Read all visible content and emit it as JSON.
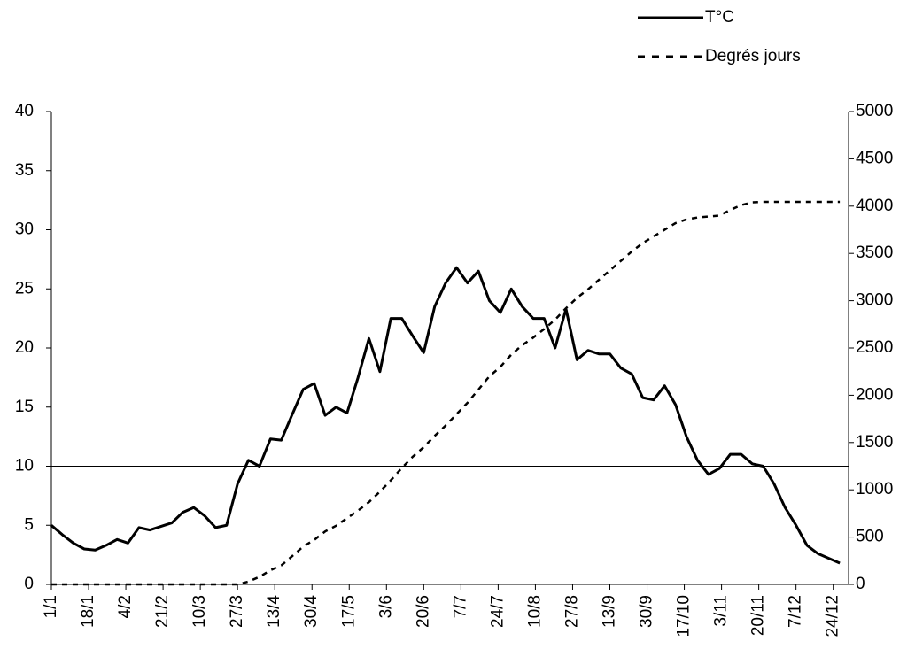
{
  "chart_data": {
    "type": "line",
    "x": [
      1,
      6,
      11,
      16,
      21,
      26,
      31,
      36,
      41,
      46,
      51,
      56,
      61,
      66,
      71,
      76,
      81,
      86,
      91,
      96,
      101,
      106,
      111,
      116,
      121,
      126,
      131,
      136,
      141,
      146,
      151,
      156,
      161,
      166,
      171,
      176,
      181,
      186,
      191,
      196,
      201,
      206,
      211,
      216,
      221,
      226,
      231,
      236,
      241,
      246,
      251,
      256,
      261,
      266,
      271,
      276,
      281,
      286,
      291,
      296,
      301,
      306,
      311,
      316,
      321,
      326,
      331,
      336,
      341,
      346,
      351,
      356,
      361
    ],
    "series": [
      {
        "name": "T°C",
        "color": "#000000",
        "dash": false,
        "values": [
          5.0,
          4.2,
          3.5,
          3.0,
          2.9,
          3.3,
          3.8,
          3.5,
          4.8,
          4.6,
          4.9,
          5.2,
          6.1,
          6.5,
          5.8,
          4.8,
          5.0,
          8.5,
          10.5,
          10.0,
          12.3,
          12.2,
          14.4,
          16.5,
          17.0,
          14.3,
          15.0,
          14.5,
          17.5,
          20.8,
          18.0,
          22.5,
          22.5,
          21.0,
          19.6,
          23.5,
          25.5,
          26.8,
          25.5,
          26.5,
          24.0,
          23.0,
          25.0,
          23.5,
          22.5,
          22.5,
          20.0,
          23.3,
          19.0,
          19.8,
          19.5,
          19.5,
          18.3,
          17.8,
          15.8,
          15.6,
          16.8,
          15.2,
          12.5,
          10.5,
          9.3,
          9.8,
          11.0,
          11.0,
          10.2,
          10.0,
          8.5,
          6.5,
          5.0,
          3.3,
          2.6,
          2.2,
          1.8
        ]
      },
      {
        "name": "Degrés jours",
        "color": "#000000",
        "dash": true,
        "axis": "y2",
        "values": [
          0,
          0,
          0,
          0,
          0,
          0,
          0,
          0,
          0,
          0,
          0,
          0,
          0,
          0,
          0,
          0,
          0,
          0,
          30,
          80,
          150,
          200,
          300,
          400,
          470,
          560,
          620,
          700,
          780,
          870,
          980,
          1100,
          1230,
          1350,
          1450,
          1570,
          1680,
          1800,
          1920,
          2060,
          2200,
          2300,
          2430,
          2530,
          2610,
          2700,
          2800,
          2920,
          3030,
          3120,
          3220,
          3320,
          3420,
          3520,
          3610,
          3680,
          3750,
          3820,
          3860,
          3880,
          3890,
          3900,
          3960,
          4010,
          4040,
          4045,
          4045,
          4045,
          4045,
          4045,
          4045,
          4045,
          4045
        ]
      }
    ],
    "xlim": [
      1,
      365
    ],
    "xticks": [
      {
        "value": 1,
        "label": "1/1"
      },
      {
        "value": 18,
        "label": "18/1"
      },
      {
        "value": 35,
        "label": "4/2"
      },
      {
        "value": 52,
        "label": "21/2"
      },
      {
        "value": 69,
        "label": "10/3"
      },
      {
        "value": 86,
        "label": "27/3"
      },
      {
        "value": 103,
        "label": "13/4"
      },
      {
        "value": 120,
        "label": "30/4"
      },
      {
        "value": 137,
        "label": "17/5"
      },
      {
        "value": 154,
        "label": "3/6"
      },
      {
        "value": 171,
        "label": "20/6"
      },
      {
        "value": 188,
        "label": "7/7"
      },
      {
        "value": 205,
        "label": "24/7"
      },
      {
        "value": 222,
        "label": "10/8"
      },
      {
        "value": 239,
        "label": "27/8"
      },
      {
        "value": 256,
        "label": "13/9"
      },
      {
        "value": 273,
        "label": "30/9"
      },
      {
        "value": 290,
        "label": "17/10"
      },
      {
        "value": 307,
        "label": "3/11"
      },
      {
        "value": 324,
        "label": "20/11"
      },
      {
        "value": 341,
        "label": "7/12"
      },
      {
        "value": 358,
        "label": "24/12"
      }
    ],
    "ylim": [
      0,
      40
    ],
    "yticks": [
      0,
      5,
      10,
      15,
      20,
      25,
      30,
      35,
      40
    ],
    "y2lim": [
      0,
      5000
    ],
    "y2ticks": [
      0,
      500,
      1000,
      1500,
      2000,
      2500,
      3000,
      3500,
      4000,
      4500,
      5000
    ],
    "hline": 10,
    "legend": "top-right"
  }
}
